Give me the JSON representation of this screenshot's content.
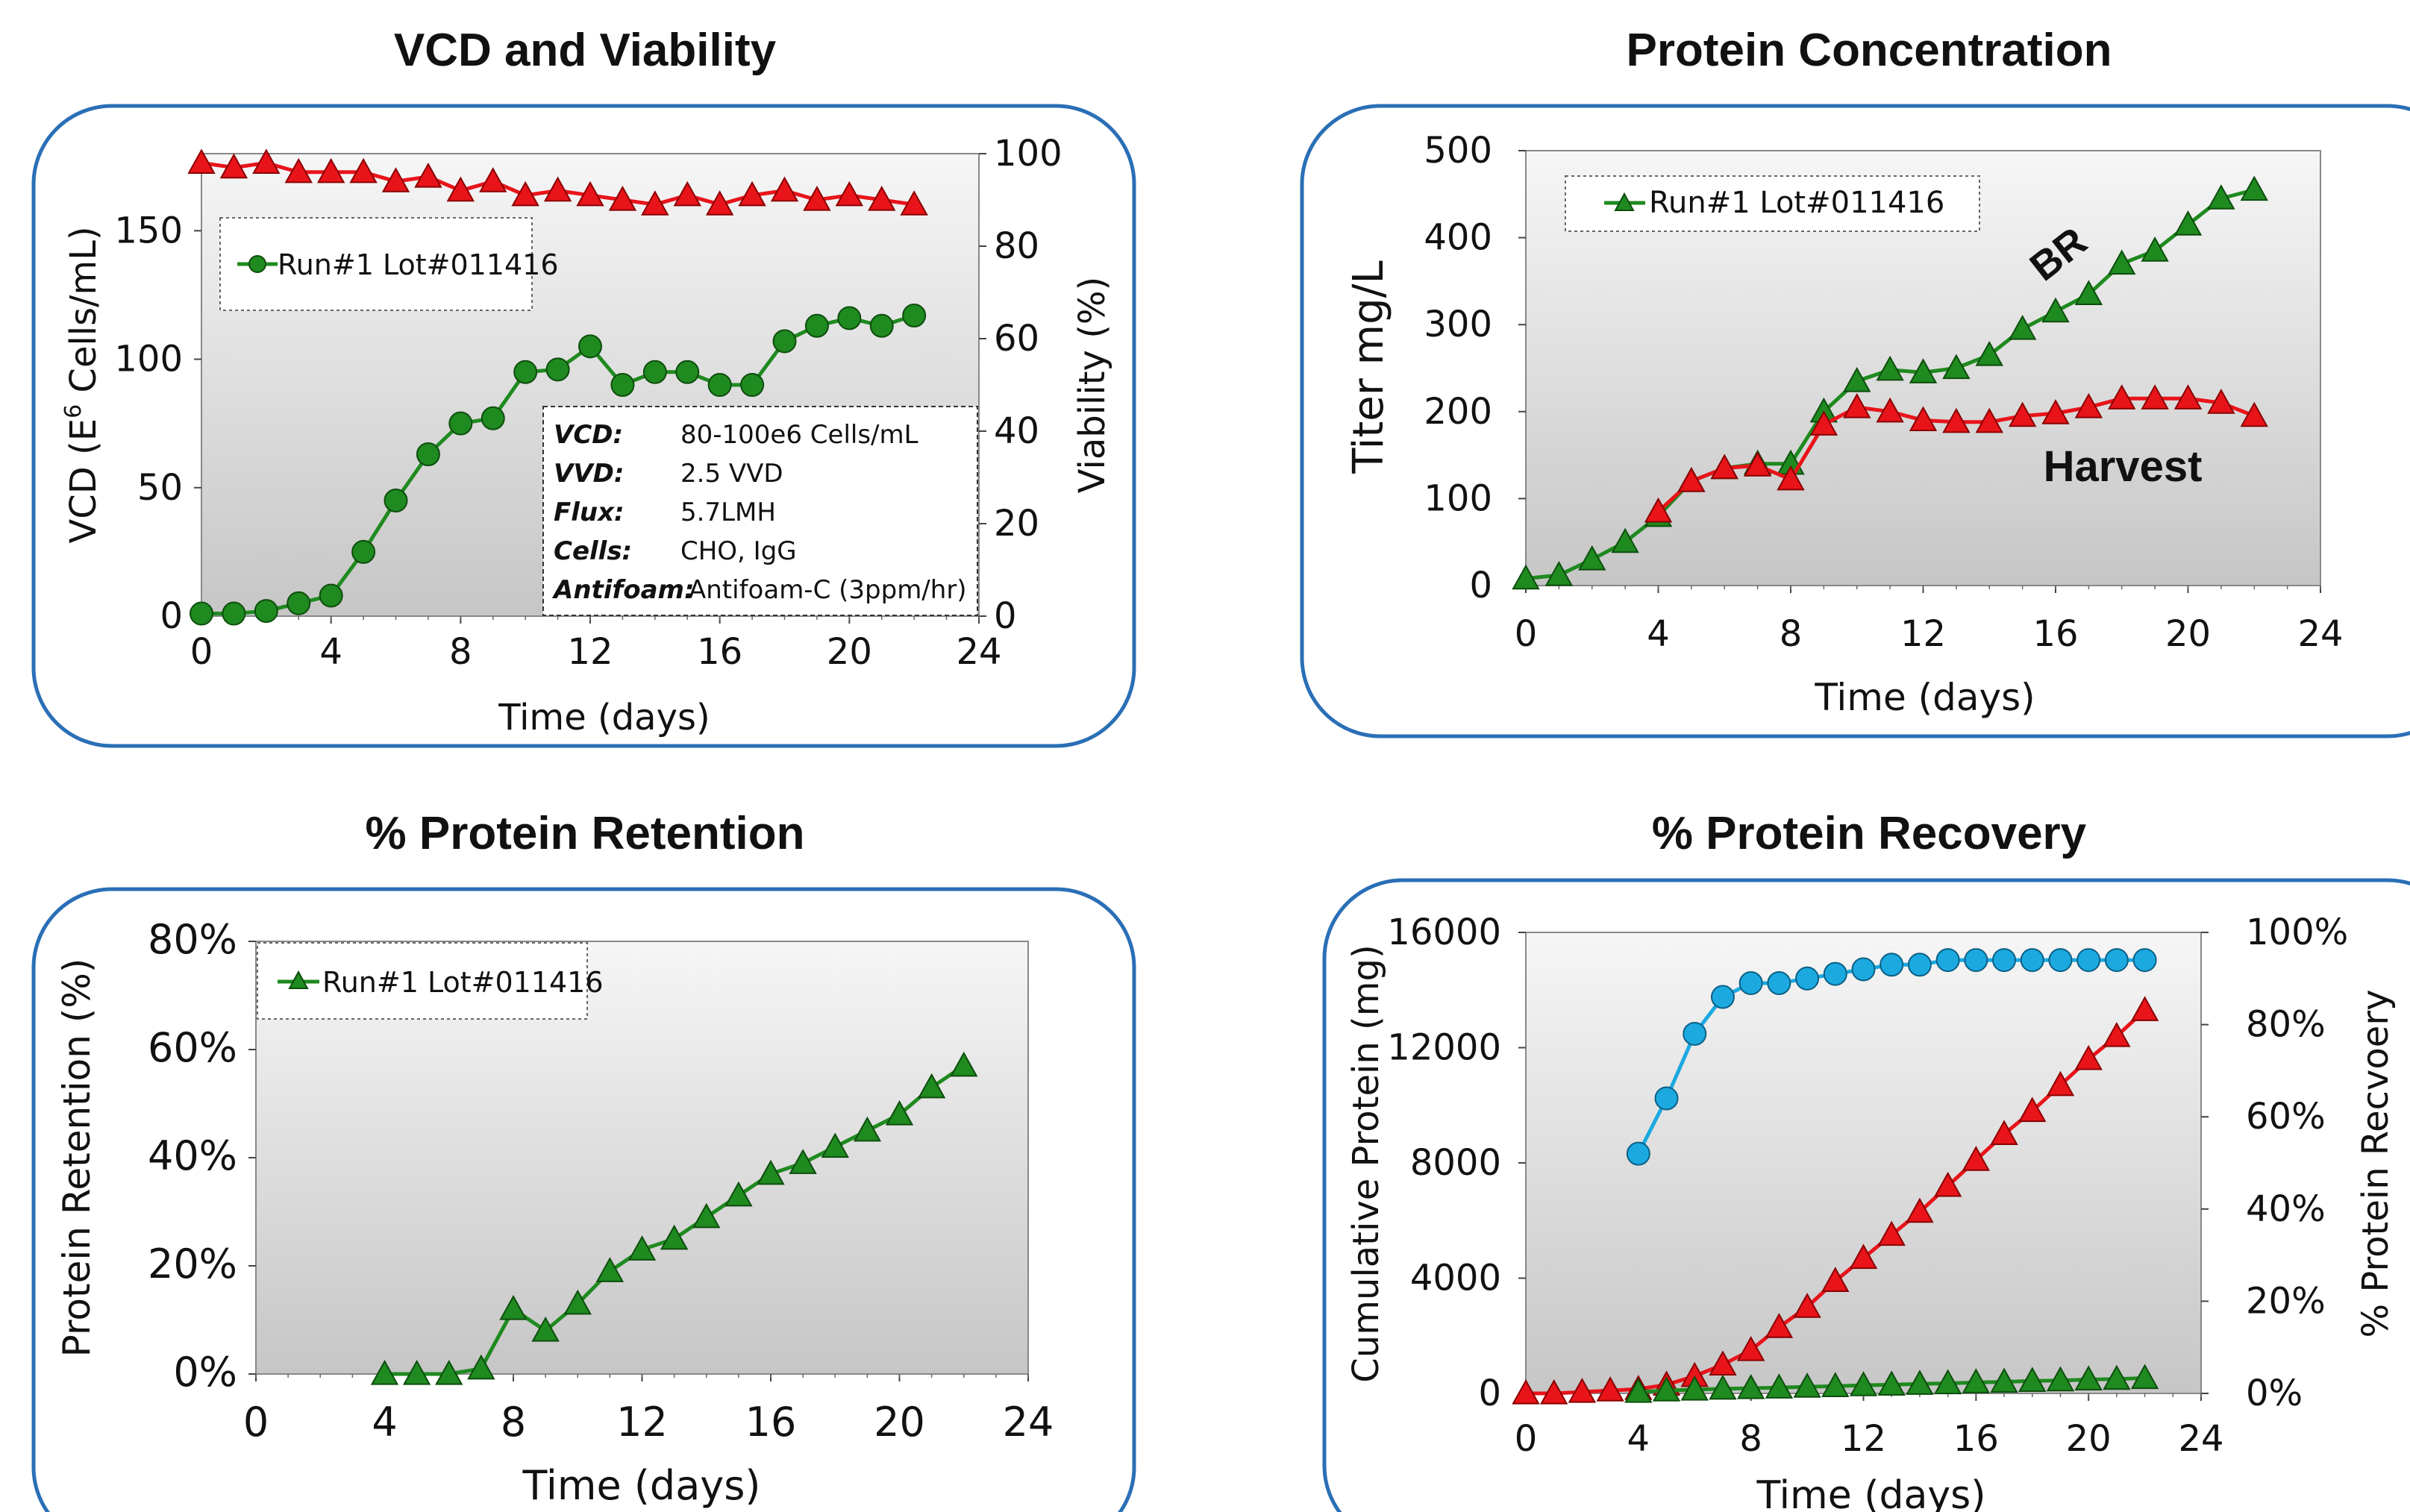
{
  "charts": [
    {
      "title": "VCD and Viability",
      "type": "line",
      "xlabel": "Time (days)",
      "ylabel": "VCD (E6 Cells/mL)",
      "ylabel_base": "VCD (E",
      "ylabel_sup": "6",
      "ylabel_rest": " Cells/mL)",
      "y2label": "Viability (%)",
      "xlim": [
        0,
        24
      ],
      "xticks": [
        "0",
        "4",
        "8",
        "12",
        "16",
        "20",
        "24"
      ],
      "ylim": [
        0,
        180
      ],
      "yticks": [
        "0",
        "50",
        "100",
        "150"
      ],
      "y2lim": [
        0,
        100
      ],
      "y2ticks": [
        "0",
        "20",
        "40",
        "60",
        "80",
        "100"
      ],
      "legend": "Run#1 Lot#011416",
      "colors": {
        "vcd": "#1f8a1f",
        "viability": "#e8141a"
      },
      "series": [
        {
          "axis": "left",
          "x": [
            0,
            1,
            2,
            3,
            4,
            5,
            6,
            7,
            8,
            9,
            10,
            11,
            12,
            13,
            14,
            15,
            16,
            17,
            18,
            19,
            20,
            21,
            22
          ],
          "values": [
            1,
            1,
            2,
            5,
            8,
            25,
            45,
            63,
            75,
            77,
            95,
            96,
            105,
            90,
            95,
            95,
            90,
            90,
            107,
            113,
            116,
            113,
            117
          ]
        },
        {
          "axis": "right",
          "x": [
            0,
            1,
            2,
            3,
            4,
            5,
            6,
            7,
            8,
            9,
            10,
            11,
            12,
            13,
            14,
            15,
            16,
            17,
            18,
            19,
            20,
            21,
            22
          ],
          "values": [
            98,
            97,
            98,
            96,
            96,
            96,
            94,
            95,
            92,
            94,
            91,
            92,
            91,
            90,
            89,
            91,
            89,
            91,
            92,
            90,
            91,
            90,
            89
          ]
        }
      ],
      "info": [
        {
          "label": "VCD:",
          "value": "80-100e6 Cells/mL"
        },
        {
          "label": "VVD:",
          "value": "2.5 VVD"
        },
        {
          "label": "Flux:",
          "value": "5.7LMH"
        },
        {
          "label": "Cells:",
          "value": "CHO, IgG"
        },
        {
          "label": "Antifoam:",
          "value": "Antifoam-C (3ppm/hr)"
        }
      ]
    },
    {
      "title": "Protein Concentration",
      "type": "line",
      "xlabel": "Time (days)",
      "ylabel": "Titer  mg/L",
      "xlim": [
        0,
        24
      ],
      "xticks": [
        "0",
        "4",
        "8",
        "12",
        "16",
        "20",
        "24"
      ],
      "ylim": [
        0,
        500
      ],
      "yticks": [
        "0",
        "100",
        "200",
        "300",
        "400",
        "500"
      ],
      "legend": "Run#1 Lot#011416",
      "annotations": {
        "br": "BR",
        "harvest": "Harvest"
      },
      "colors": {
        "br": "#1f8a1f",
        "harvest": "#e8141a"
      },
      "series": [
        {
          "x": [
            0,
            1,
            2,
            3,
            4,
            5,
            6,
            7,
            8,
            9,
            10,
            11,
            12,
            13,
            14,
            15,
            16,
            17,
            18,
            19,
            20,
            21,
            22
          ],
          "values": [
            8,
            12,
            30,
            50,
            80,
            120,
            135,
            140,
            140,
            200,
            235,
            248,
            245,
            250,
            265,
            295,
            315,
            335,
            370,
            385,
            415,
            445,
            455
          ]
        },
        {
          "x": [
            4,
            5,
            6,
            7,
            8,
            9,
            10,
            11,
            12,
            13,
            14,
            15,
            16,
            17,
            18,
            19,
            20,
            21,
            22
          ],
          "values": [
            85,
            120,
            135,
            138,
            122,
            185,
            205,
            200,
            190,
            188,
            188,
            195,
            198,
            205,
            215,
            215,
            215,
            210,
            195
          ]
        }
      ]
    },
    {
      "title": "% Protein Retention",
      "type": "line",
      "xlabel": "Time (days)",
      "ylabel": "Protein Retention (%)",
      "xlim": [
        0,
        24
      ],
      "xticks": [
        "0",
        "4",
        "8",
        "12",
        "16",
        "20",
        "24"
      ],
      "ylim": [
        0,
        80
      ],
      "yticks": [
        "0%",
        "20%",
        "40%",
        "60%",
        "80%"
      ],
      "legend": "Run#1 Lot#011416",
      "colors": {
        "retention": "#1f8a1f"
      },
      "series": [
        {
          "x": [
            4,
            5,
            6,
            7,
            8,
            9,
            10,
            11,
            12,
            13,
            14,
            15,
            16,
            17,
            18,
            19,
            20,
            21,
            22
          ],
          "values": [
            0,
            0,
            0,
            1,
            12,
            8,
            13,
            19,
            23,
            25,
            29,
            33,
            37,
            39,
            42,
            45,
            48,
            53,
            57
          ]
        }
      ]
    },
    {
      "title": "% Protein Recovery",
      "type": "line",
      "xlabel": "Time (days)",
      "ylabel": "Cumulative Protein (mg)",
      "y2label": "% Protein Recvoery",
      "xlim": [
        0,
        24
      ],
      "xticks": [
        "0",
        "4",
        "8",
        "12",
        "16",
        "20",
        "24"
      ],
      "ylim": [
        0,
        16000
      ],
      "yticks": [
        "0",
        "4000",
        "8000",
        "12000",
        "16000"
      ],
      "y2lim": [
        0,
        100
      ],
      "y2ticks": [
        "0%",
        "20%",
        "40%",
        "60%",
        "80%",
        "100%"
      ],
      "colors": {
        "red": "#e8141a",
        "green": "#1f8a1f",
        "blue": "#1ba9e0"
      },
      "series": [
        {
          "axis": "left",
          "color": "red",
          "x": [
            0,
            1,
            2,
            3,
            4,
            5,
            6,
            7,
            8,
            9,
            10,
            11,
            12,
            13,
            14,
            15,
            16,
            17,
            18,
            19,
            20,
            21,
            22
          ],
          "values": [
            0,
            0,
            50,
            100,
            150,
            300,
            600,
            1000,
            1500,
            2300,
            3000,
            3900,
            4700,
            5500,
            6300,
            7200,
            8100,
            9000,
            9800,
            10700,
            11600,
            12400,
            13300
          ]
        },
        {
          "axis": "left",
          "color": "green",
          "x": [
            4,
            5,
            6,
            7,
            8,
            9,
            10,
            11,
            12,
            13,
            14,
            15,
            16,
            17,
            18,
            19,
            20,
            21,
            22
          ],
          "values": [
            50,
            100,
            130,
            160,
            180,
            200,
            230,
            250,
            280,
            300,
            330,
            350,
            380,
            400,
            430,
            450,
            480,
            500,
            530
          ]
        },
        {
          "axis": "right",
          "color": "blue",
          "x": [
            4,
            5,
            6,
            7,
            8,
            9,
            10,
            11,
            12,
            13,
            14,
            15,
            16,
            17,
            18,
            19,
            20,
            21,
            22
          ],
          "values": [
            52,
            64,
            78,
            86,
            89,
            89,
            90,
            91,
            92,
            93,
            93,
            94,
            94,
            94,
            94,
            94,
            94,
            94,
            94
          ]
        }
      ]
    }
  ]
}
